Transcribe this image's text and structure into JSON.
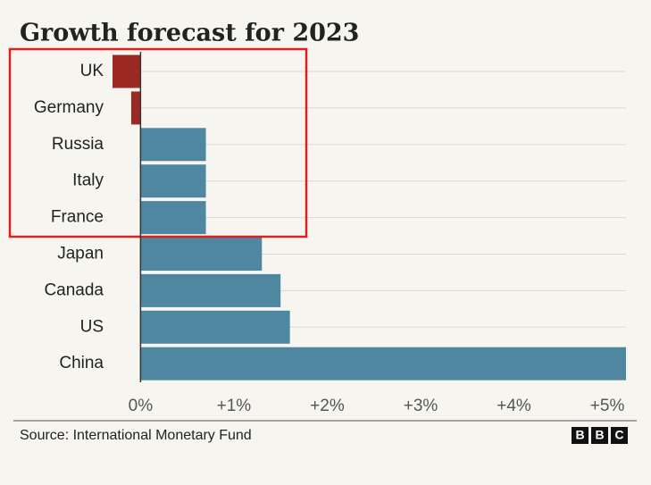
{
  "chart_data": {
    "type": "barh",
    "title": "Growth forecast for 2023",
    "categories": [
      "UK",
      "Germany",
      "Russia",
      "Italy",
      "France",
      "Japan",
      "Canada",
      "US",
      "China"
    ],
    "values": [
      -0.3,
      -0.1,
      0.7,
      0.7,
      0.7,
      1.3,
      1.5,
      1.6,
      5.2
    ],
    "colors": [
      "#9b2a24",
      "#9b2a24",
      "#4f87a1",
      "#4f87a1",
      "#4f87a1",
      "#4f87a1",
      "#4f87a1",
      "#4f87a1",
      "#4f87a1"
    ],
    "xlim": [
      -0.3,
      5.2
    ],
    "xticks": [
      {
        "value": 0,
        "label": "0%"
      },
      {
        "value": 1,
        "label": "+1%"
      },
      {
        "value": 2,
        "label": "+2%"
      },
      {
        "value": 3,
        "label": "+3%"
      },
      {
        "value": 4,
        "label": "+4%"
      },
      {
        "value": 5,
        "label": "+5%"
      }
    ],
    "grid": true,
    "source": "Source: International Monetary Fund",
    "logo": [
      "B",
      "B",
      "C"
    ]
  }
}
